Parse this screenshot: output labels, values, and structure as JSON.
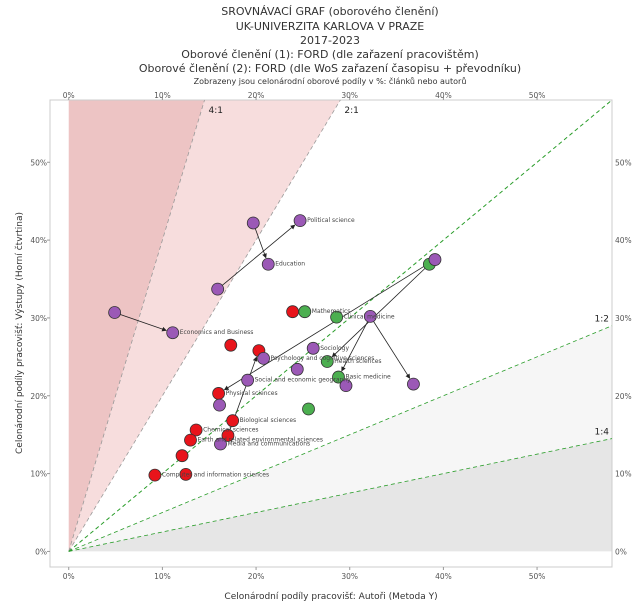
{
  "chart_data": {
    "type": "scatter",
    "title_lines": [
      "SROVNÁVACÍ GRAF (oborového členění)",
      "UK-UNIVERZITA KARLOVA V PRAZE",
      "2017-2023",
      "Oborové členění (1): FORD (dle zařazení pracovištěm)",
      "Oborové členění (2): FORD (dle WoS zařazení časopisu + převodníku)"
    ],
    "subtitle": "Zobrazeny jsou celonárodní oborové podíly v %: článků nebo autorů",
    "x_label": "Celonárodní podíly pracovišť: Autoři (Metoda Y)",
    "y_label": "Celonárodní podíly pracovišť: Výstupy (Horní čtvrtina)",
    "xlim": [
      -2,
      58
    ],
    "ylim": [
      -2,
      58
    ],
    "xticks": [
      {
        "value": 0,
        "label": "0%"
      },
      {
        "value": 10,
        "label": "10%"
      },
      {
        "value": 20,
        "label": "20%"
      },
      {
        "value": 30,
        "label": "30%"
      },
      {
        "value": 40,
        "label": "40%"
      },
      {
        "value": 50,
        "label": "50%"
      }
    ],
    "yticks": [
      {
        "value": 0,
        "label": "0%"
      },
      {
        "value": 10,
        "label": "10%"
      },
      {
        "value": 20,
        "label": "20%"
      },
      {
        "value": 30,
        "label": "30%"
      },
      {
        "value": 40,
        "label": "40%"
      },
      {
        "value": 50,
        "label": "50%"
      }
    ],
    "ratio_lines": [
      {
        "label": "4:1",
        "slope": 4
      },
      {
        "label": "2:1",
        "slope": 2
      },
      {
        "label": "1:2",
        "slope": 0.5
      },
      {
        "label": "1:4",
        "slope": 0.25
      }
    ],
    "points": [
      {
        "label": "Economics and Business",
        "x": 11.1,
        "y": 28.1,
        "color": "#9b59b6"
      },
      {
        "label": null,
        "x": 4.9,
        "y": 30.7,
        "color": "#9b59b6"
      },
      {
        "label": null,
        "x": 19.7,
        "y": 42.2,
        "color": "#9b59b6"
      },
      {
        "label": "Education",
        "x": 21.3,
        "y": 36.9,
        "color": "#9b59b6"
      },
      {
        "label": null,
        "x": 15.9,
        "y": 33.7,
        "color": "#9b59b6"
      },
      {
        "label": "Political science",
        "x": 24.7,
        "y": 42.5,
        "color": "#9b59b6"
      },
      {
        "label": null,
        "x": 23.9,
        "y": 30.8,
        "color": "#e8141b"
      },
      {
        "label": "Mathematics",
        "x": 25.2,
        "y": 30.8,
        "color": "#4caf50"
      },
      {
        "label": "Clinical medicine",
        "x": 28.6,
        "y": 30.1,
        "color": "#4caf50"
      },
      {
        "label": null,
        "x": 32.2,
        "y": 30.2,
        "color": "#9b59b6"
      },
      {
        "label": null,
        "x": 36.8,
        "y": 21.5,
        "color": "#9b59b6"
      },
      {
        "label": null,
        "x": 38.5,
        "y": 36.9,
        "color": "#4caf50"
      },
      {
        "label": null,
        "x": 39.1,
        "y": 37.5,
        "color": "#9b59b6"
      },
      {
        "label": null,
        "x": 17.3,
        "y": 26.5,
        "color": "#e8141b"
      },
      {
        "label": null,
        "x": 20.3,
        "y": 25.8,
        "color": "#e8141b"
      },
      {
        "label": "Psychology and cognitive sciences",
        "x": 20.8,
        "y": 24.8,
        "color": "#9b59b6"
      },
      {
        "label": "Sociology",
        "x": 26.1,
        "y": 26.1,
        "color": "#9b59b6"
      },
      {
        "label": "Health sciences",
        "x": 27.6,
        "y": 24.4,
        "color": "#4caf50"
      },
      {
        "label": "Basic medicine",
        "x": 28.8,
        "y": 22.4,
        "color": "#4caf50"
      },
      {
        "label": null,
        "x": 29.6,
        "y": 21.3,
        "color": "#9b59b6"
      },
      {
        "label": "Social and economic geography",
        "x": 19.1,
        "y": 22.0,
        "color": "#9b59b6"
      },
      {
        "label": null,
        "x": 24.4,
        "y": 23.4,
        "color": "#9b59b6"
      },
      {
        "label": "Physical sciences",
        "x": 16.0,
        "y": 20.3,
        "color": "#e8141b"
      },
      {
        "label": null,
        "x": 16.1,
        "y": 18.8,
        "color": "#9b59b6"
      },
      {
        "label": null,
        "x": 25.6,
        "y": 18.3,
        "color": "#4caf50"
      },
      {
        "label": "Biological sciences",
        "x": 17.5,
        "y": 16.8,
        "color": "#e8141b"
      },
      {
        "label": "Chemical sciences",
        "x": 13.6,
        "y": 15.6,
        "color": "#e8141b"
      },
      {
        "label": "Earth and related environmental sciences",
        "x": 13.0,
        "y": 14.3,
        "color": "#e8141b"
      },
      {
        "label": null,
        "x": 17.0,
        "y": 14.9,
        "color": "#e8141b"
      },
      {
        "label": "Media and communications",
        "x": 16.2,
        "y": 13.8,
        "color": "#9b59b6"
      },
      {
        "label": null,
        "x": 12.1,
        "y": 12.3,
        "color": "#e8141b"
      },
      {
        "label": "Computer and information sciences",
        "x": 9.2,
        "y": 9.8,
        "color": "#e8141b"
      },
      {
        "label": null,
        "x": 12.5,
        "y": 9.9,
        "color": "#e8141b"
      }
    ],
    "arrows": [
      {
        "x": [
          4.9,
          11.1
        ],
        "y": [
          30.7,
          28.1
        ]
      },
      {
        "x": [
          19.7,
          21.3
        ],
        "y": [
          42.2,
          36.9
        ]
      },
      {
        "x": [
          15.9,
          24.7
        ],
        "y": [
          33.7,
          42.5
        ]
      },
      {
        "x": [
          39.1,
          16.0
        ],
        "y": [
          37.5,
          20.3
        ]
      },
      {
        "x": [
          38.5,
          27.6
        ],
        "y": [
          36.9,
          24.4
        ]
      },
      {
        "x": [
          32.2,
          36.8
        ],
        "y": [
          30.2,
          21.5
        ]
      },
      {
        "x": [
          32.2,
          28.8
        ],
        "y": [
          30.2,
          22.4
        ]
      },
      {
        "x": [
          17.0,
          20.3
        ],
        "y": [
          14.9,
          25.8
        ]
      }
    ]
  }
}
